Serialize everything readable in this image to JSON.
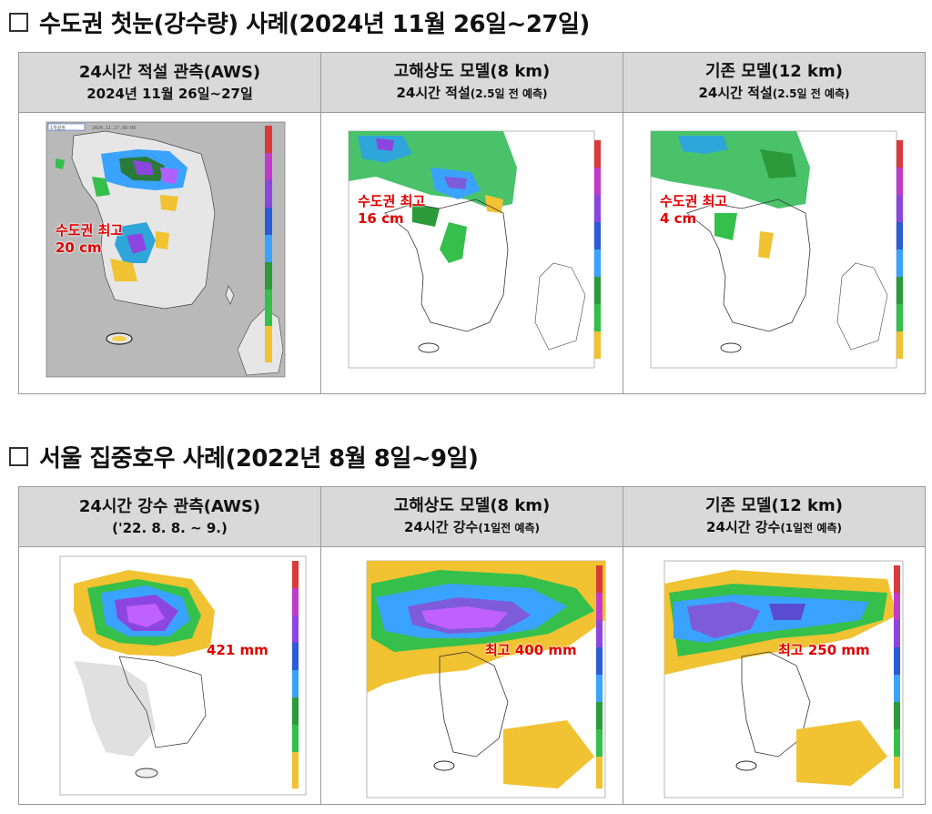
{
  "sections": [
    {
      "title": "수도권 첫눈(강수량) 사례(2024년 11월 26일~27일)",
      "panels": [
        {
          "line1": "24시간 적설 관측(AWS)",
          "line2": "2024년 11월 26일~27일",
          "line2_small": "",
          "annotation_lines": [
            "수도권 최고",
            "20 cm"
          ],
          "stamp": "2024.11.27.09:00",
          "badge": "1개설정"
        },
        {
          "line1": "고해상도 모델(8 km)",
          "line2": "24시간 적설",
          "line2_small": "(2.5일 전 예측)",
          "annotation_lines": [
            "수도권 최고",
            "16 cm"
          ]
        },
        {
          "line1": "기존 모델(12 km)",
          "line2": "24시간 적설",
          "line2_small": "(2.5일 전 예측)",
          "annotation_lines": [
            "수도권 최고",
            "4 cm"
          ]
        }
      ]
    },
    {
      "title": "서울 집중호우 사례(2022년 8월 8일~9일)",
      "panels": [
        {
          "line1": "24시간 강수 관측(AWS)",
          "line2": "('22. 8. 8. ~ 9.)",
          "line2_small": "",
          "annotation_lines": [
            "421 mm"
          ]
        },
        {
          "line1": "고해상도 모델(8 km)",
          "line2": "24시간 강수",
          "line2_small": "(1일전 예측)",
          "annotation_lines": [
            "최고 400 mm"
          ]
        },
        {
          "line1": "기존 모델(12 km)",
          "line2": "24시간 강수",
          "line2_small": "(1일전 예측)",
          "annotation_lines": [
            "최고 250 mm"
          ]
        }
      ]
    }
  ],
  "colors": {
    "header_bg": "#d9d9d9",
    "annotation": "#e00000",
    "land_gray": "#bdbdbd"
  }
}
